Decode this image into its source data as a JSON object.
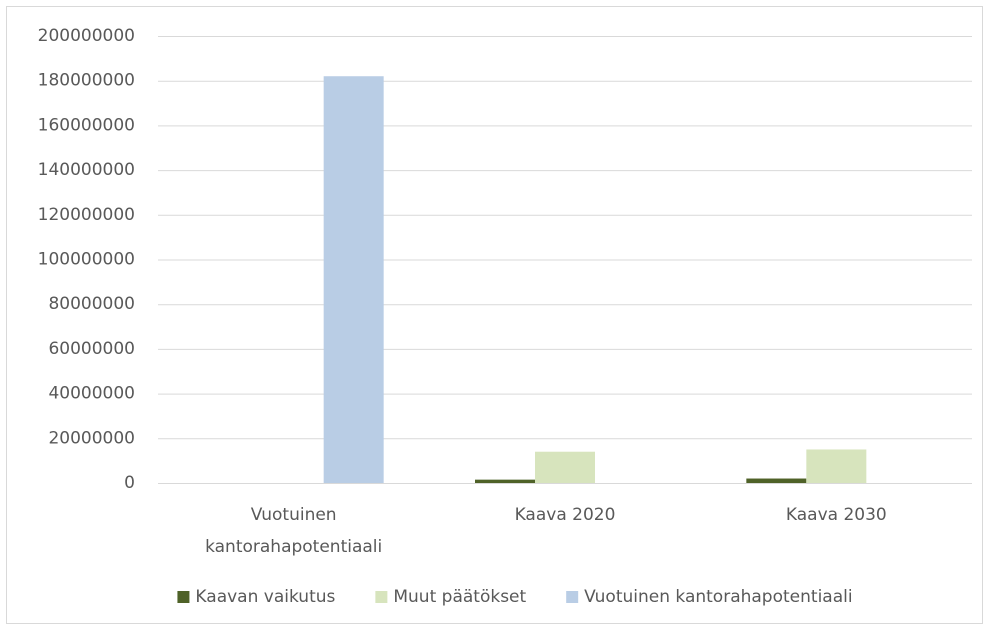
{
  "chart_data": {
    "type": "bar",
    "categories": [
      "Vuotuinen kantorahapotentiaali",
      "Kaava 2020",
      "Kaava 2030"
    ],
    "series": [
      {
        "name": "Kaavan vaikutus",
        "color": "#4f6228",
        "values": [
          null,
          1500000,
          2000000
        ]
      },
      {
        "name": "Muut päätökset",
        "color": "#d7e4bd",
        "values": [
          null,
          14000000,
          15000000
        ]
      },
      {
        "name": "Vuotuinen kantorahapotentiaali",
        "color": "#b9cde5",
        "values": [
          182000000,
          null,
          null
        ]
      }
    ],
    "ylim": [
      0,
      200000000
    ],
    "yticks": [
      0,
      20000000,
      40000000,
      60000000,
      80000000,
      100000000,
      120000000,
      140000000,
      160000000,
      180000000,
      200000000
    ],
    "grid": true,
    "legend": "bottom"
  }
}
